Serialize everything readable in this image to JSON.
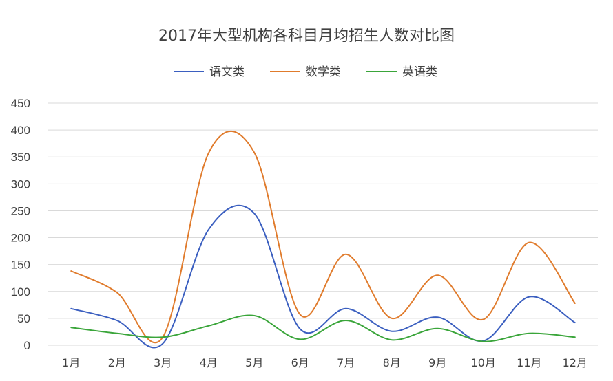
{
  "chart_data": {
    "type": "line",
    "title": "2017年大型机构各科目月均招生人数对比图",
    "categories": [
      "1月",
      "2月",
      "3月",
      "4月",
      "5月",
      "6月",
      "7月",
      "8月",
      "9月",
      "10月",
      "11月",
      "12月"
    ],
    "series": [
      {
        "name": "语文类",
        "color": "#3b5fc0",
        "values": [
          68,
          46,
          3,
          215,
          245,
          30,
          68,
          26,
          52,
          8,
          90,
          42
        ]
      },
      {
        "name": "数学类",
        "color": "#e07b2c",
        "values": [
          138,
          98,
          15,
          357,
          358,
          57,
          169,
          50,
          130,
          48,
          191,
          78
        ]
      },
      {
        "name": "英语类",
        "color": "#3aa53a",
        "values": [
          33,
          22,
          15,
          36,
          55,
          11,
          46,
          10,
          31,
          7,
          22,
          15
        ]
      }
    ],
    "ylim": [
      0,
      450
    ],
    "yticks": [
      "0",
      "50",
      "100",
      "150",
      "200",
      "250",
      "300",
      "350",
      "400",
      "450"
    ],
    "grid": true,
    "legend_position": "top-center",
    "smooth": true
  }
}
